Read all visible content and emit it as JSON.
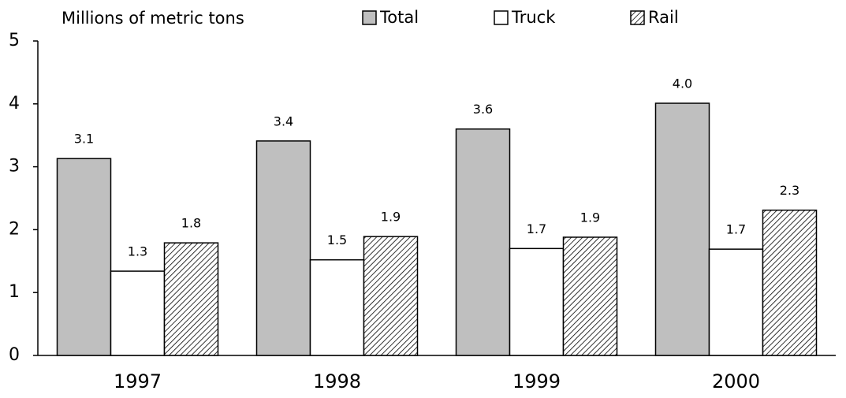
{
  "chart_data": {
    "type": "bar",
    "title": "Millions of metric tons",
    "categories": [
      "1997",
      "1998",
      "1999",
      "2000"
    ],
    "series": [
      {
        "name": "Total",
        "color": "#bfbfbf",
        "values": [
          3.13,
          3.41,
          3.6,
          4.01
        ],
        "value_labels": [
          "3.1",
          "3.4",
          "3.6",
          "4.0"
        ]
      },
      {
        "name": "Truck",
        "color": "#ffffff",
        "values": [
          1.34,
          1.52,
          1.7,
          1.69
        ],
        "value_labels": [
          "1.3",
          "1.5",
          "1.7",
          "1.7"
        ]
      },
      {
        "name": "Rail",
        "color": "hatch",
        "values": [
          1.79,
          1.89,
          1.88,
          2.31
        ],
        "value_labels": [
          "1.8",
          "1.9",
          "1.9",
          "2.3"
        ]
      }
    ],
    "ylim": [
      0,
      5
    ],
    "yticks": [
      0,
      1,
      2,
      3,
      4,
      5
    ],
    "grid": false
  }
}
